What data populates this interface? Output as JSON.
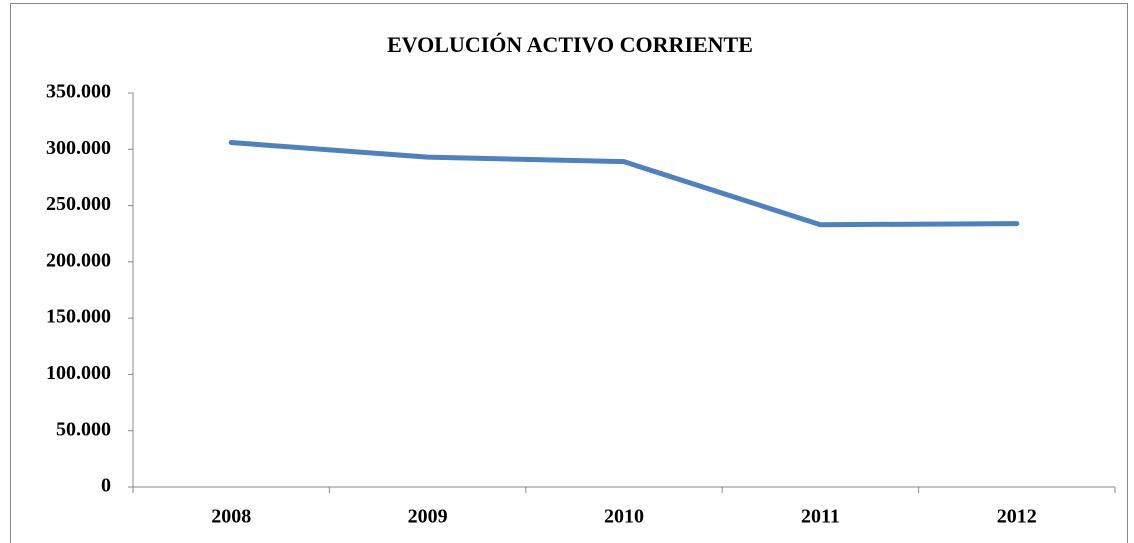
{
  "chart_data": {
    "type": "line",
    "title": "EVOLUCIÓN ACTIVO CORRIENTE",
    "categories": [
      "2008",
      "2009",
      "2010",
      "2011",
      "2012"
    ],
    "values": [
      306000,
      293000,
      289000,
      233000,
      234000
    ],
    "color": "#4f81bd",
    "ylim": [
      0,
      350000
    ],
    "yticks": [
      0,
      {
        "value": 50000,
        "label": "50.000"
      },
      {
        "value": 100000,
        "label": "100.000"
      },
      {
        "value": 150000,
        "label": "150.000"
      },
      {
        "value": 200000,
        "label": "200.000"
      },
      {
        "value": 250000,
        "label": "250.000"
      },
      {
        "value": 300000,
        "label": "300.000"
      },
      {
        "value": 350000,
        "label": "350.000"
      }
    ],
    "grid": false
  }
}
